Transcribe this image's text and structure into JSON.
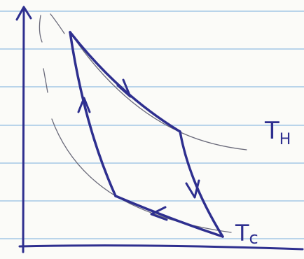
{
  "labels": {
    "hot": {
      "main": "T",
      "sub": "H"
    },
    "cold": {
      "main": "T",
      "sub": "c"
    }
  }
}
